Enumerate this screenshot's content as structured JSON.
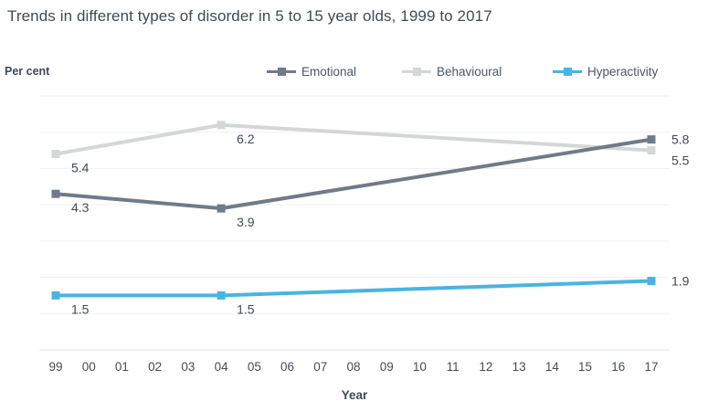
{
  "title": "Trends in different types of disorder in 5 to 15 year olds, 1999 to 2017",
  "y_axis_title": "Per cent",
  "x_axis_title": "Year",
  "colors": {
    "title_text": "#3e4a59",
    "axis_text": "#424d5a",
    "label_text": "#3e4a59",
    "grid_line": "#eef0f1",
    "axis_line": "#e0e3e6",
    "background": "#ffffff"
  },
  "chart_data": {
    "type": "line",
    "x": [
      1999,
      2004,
      2017
    ],
    "x_first_year": 1999,
    "x_tick_labels": [
      "99",
      "00",
      "01",
      "02",
      "03",
      "04",
      "05",
      "06",
      "07",
      "08",
      "09",
      "10",
      "11",
      "12",
      "13",
      "14",
      "15",
      "16",
      "17"
    ],
    "series": [
      {
        "name": "Emotional",
        "color": "#6f7b89",
        "values": [
          4.3,
          3.9,
          5.8
        ]
      },
      {
        "name": "Behavioural",
        "color": "#d3d7d5",
        "values": [
          5.4,
          6.2,
          5.5
        ]
      },
      {
        "name": "Hyperactivity",
        "color": "#49b4e4",
        "values": [
          1.5,
          1.5,
          1.9
        ]
      }
    ],
    "ylim": [
      0,
      7
    ],
    "grid": true,
    "data_labels": true,
    "legend_position": "top"
  }
}
